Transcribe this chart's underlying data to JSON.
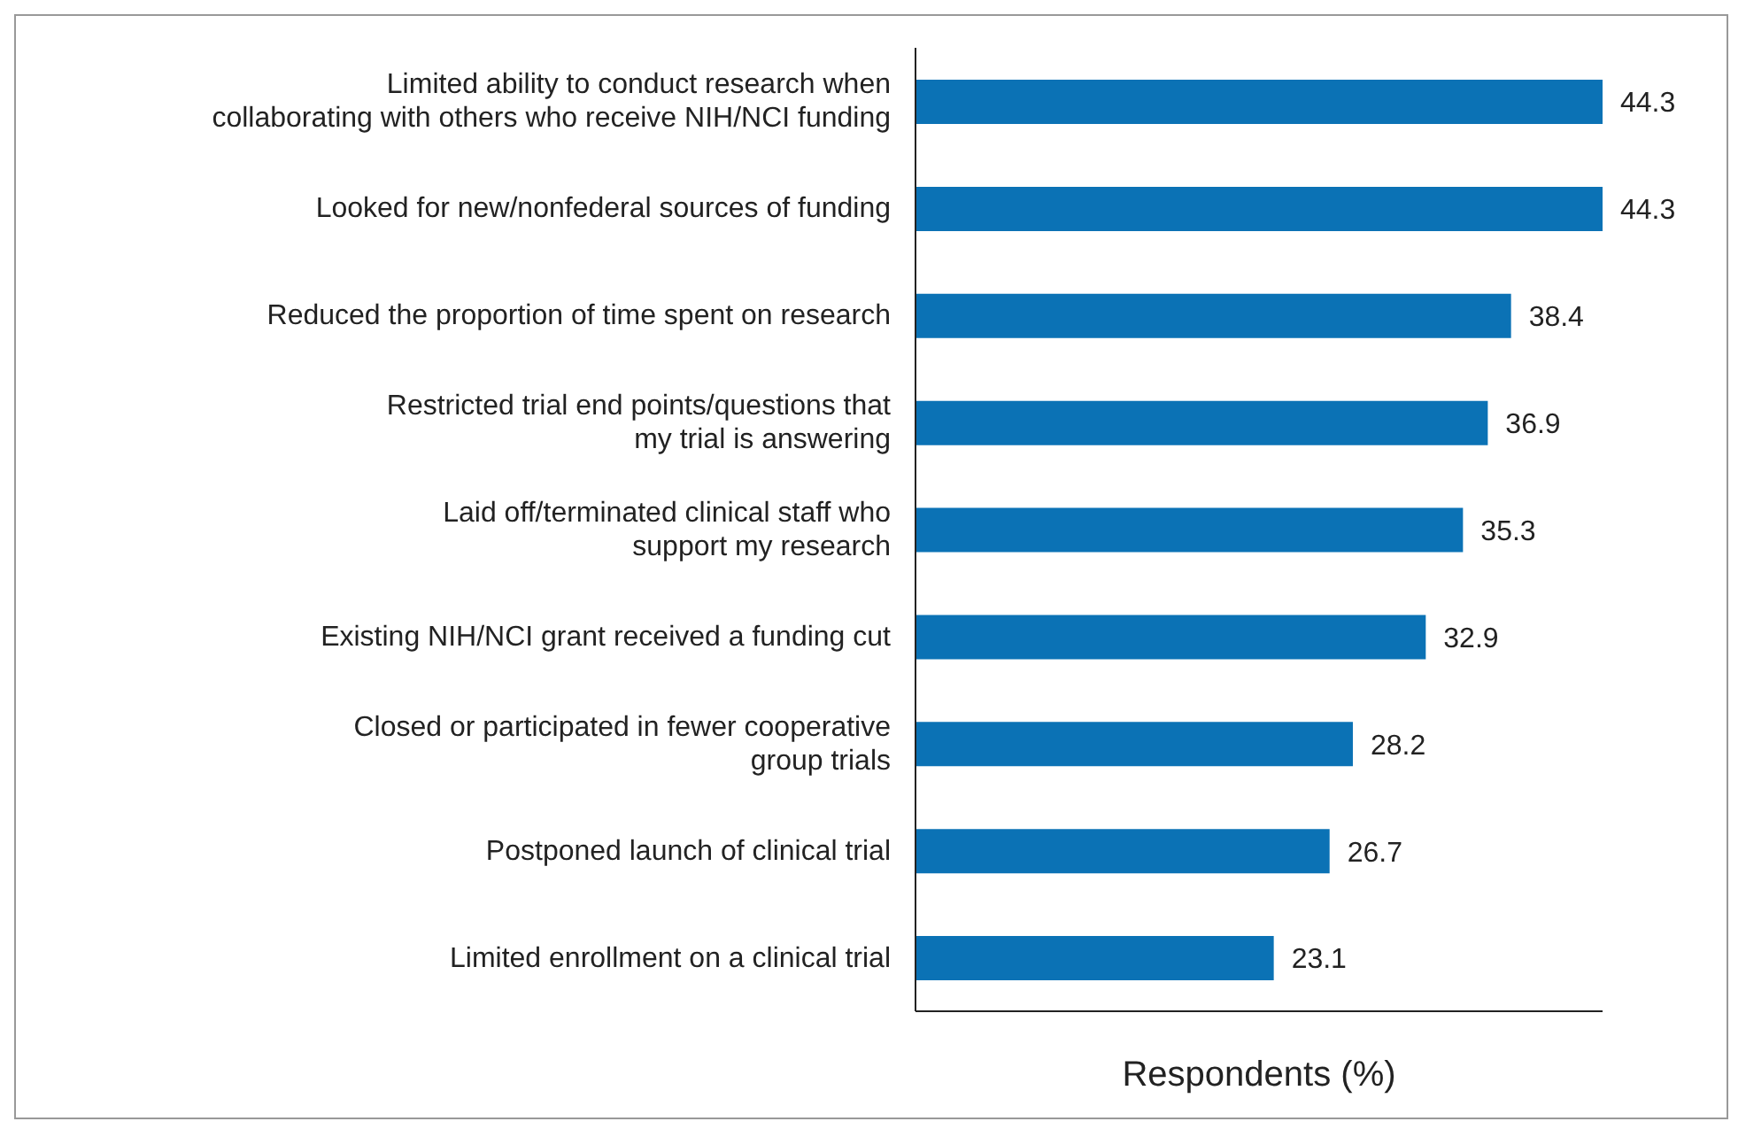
{
  "chart_data": {
    "type": "bar",
    "orientation": "horizontal",
    "xlabel": "Respondents (%)",
    "categories": [
      "Limited ability to conduct research when\ncollaborating with others who receive NIH/NCI funding",
      "Looked for new/nonfederal sources of funding",
      "Reduced the proportion of time spent on research",
      "Restricted trial end points/questions that\nmy trial is answering",
      "Laid off/terminated clinical staff who\nsupport my research",
      "Existing NIH/NCI grant received a funding cut",
      "Closed or participated in fewer cooperative\ngroup trials",
      "Postponed launch of clinical trial",
      "Limited enrollment on a clinical trial"
    ],
    "values": [
      44.3,
      44.3,
      38.4,
      36.9,
      35.3,
      32.9,
      28.2,
      26.7,
      23.1
    ],
    "color": "#0b72b5",
    "data_labels": true,
    "tick_labels": "y"
  }
}
